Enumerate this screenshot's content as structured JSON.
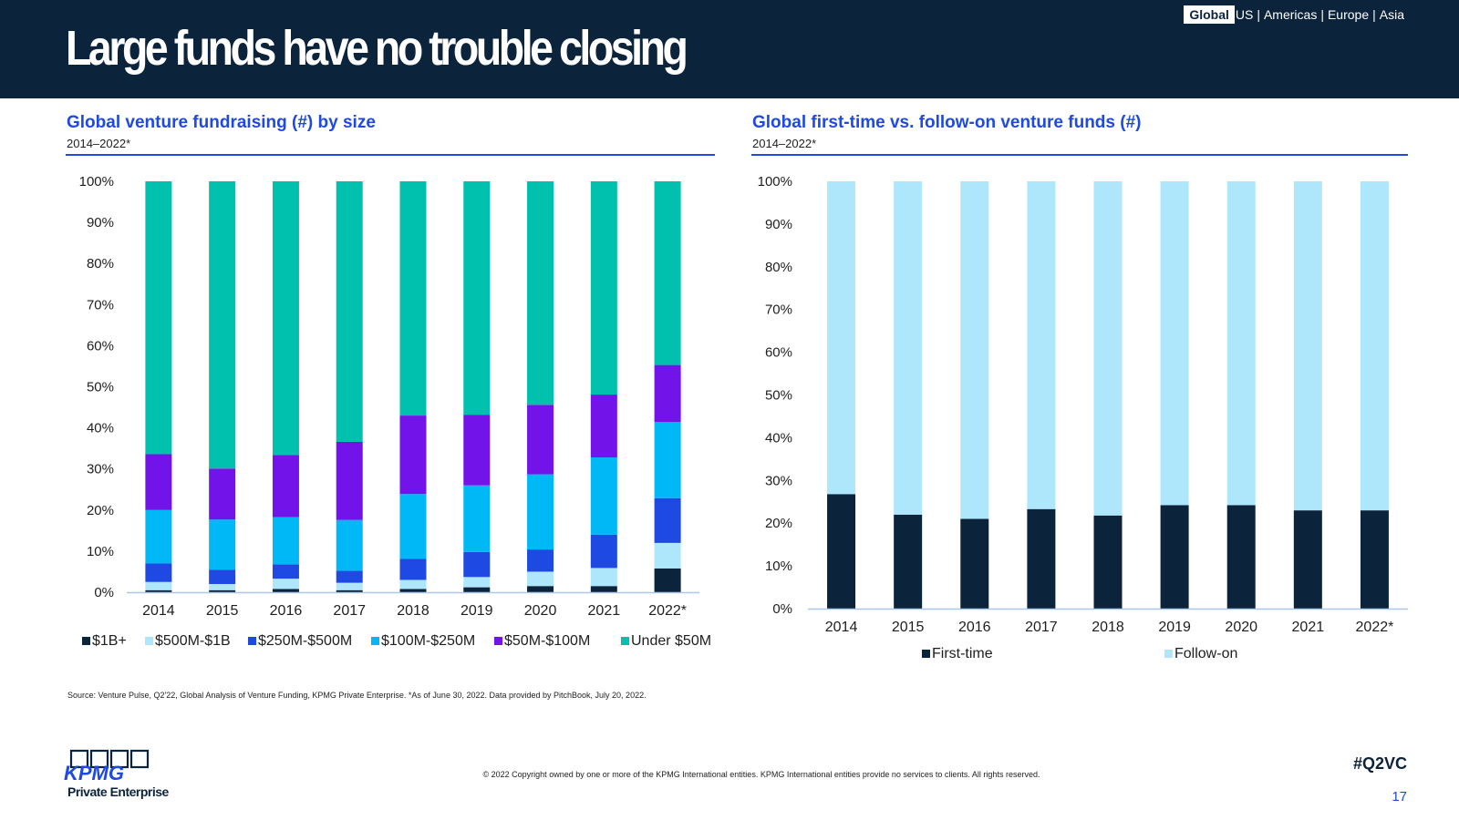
{
  "header": {
    "title": "Large funds have no trouble closing",
    "regions": {
      "active": "Global",
      "others": [
        "US",
        "Americas",
        "Europe",
        "Asia"
      ],
      "separator": "|"
    }
  },
  "left_chart": {
    "title": "Global venture fundraising (#) by size",
    "subtitle": "2014–2022*"
  },
  "right_chart": {
    "title": "Global first-time vs. follow-on venture funds (#)",
    "subtitle": "2014–2022*"
  },
  "chart_data": [
    {
      "type": "bar",
      "stacked": true,
      "title": "Global venture fundraising (#) by size",
      "subtitle": "2014–2022*",
      "categories": [
        "2014",
        "2015",
        "2016",
        "2017",
        "2018",
        "2019",
        "2020",
        "2021",
        "2022*"
      ],
      "ylim": [
        0,
        100
      ],
      "yticks": [
        "0%",
        "10%",
        "20%",
        "30%",
        "40%",
        "50%",
        "60%",
        "70%",
        "80%",
        "90%",
        "100%"
      ],
      "legend_position": "bottom",
      "series": [
        {
          "name": "$1B+",
          "color": "#0c233c",
          "values": [
            0.5,
            0.5,
            0.8,
            0.5,
            0.8,
            1.2,
            1.5,
            1.5,
            5.8
          ]
        },
        {
          "name": "$500M-$1B",
          "color": "#aee6fb",
          "values": [
            2.0,
            1.5,
            2.5,
            1.8,
            2.2,
            2.5,
            3.5,
            4.4,
            6.2
          ]
        },
        {
          "name": "$250M-$500M",
          "color": "#1e49e2",
          "values": [
            4.5,
            3.5,
            3.5,
            2.9,
            5.1,
            6.1,
            5.4,
            8.1,
            10.9
          ]
        },
        {
          "name": "$100M-$250M",
          "color": "#00b8f5",
          "values": [
            13.0,
            12.2,
            11.5,
            12.4,
            15.8,
            16.2,
            18.3,
            18.8,
            18.5
          ]
        },
        {
          "name": "$50M-$100M",
          "color": "#7213ea",
          "values": [
            13.6,
            12.4,
            15.1,
            19.0,
            19.1,
            17.2,
            16.9,
            15.3,
            13.9
          ]
        },
        {
          "name": "Under $50M",
          "color": "#00c0ae",
          "values": [
            66.4,
            69.9,
            66.6,
            63.4,
            57.0,
            56.8,
            54.4,
            51.9,
            44.7
          ]
        }
      ]
    },
    {
      "type": "bar",
      "stacked": true,
      "title": "Global first-time vs. follow-on venture funds (#)",
      "subtitle": "2014–2022*",
      "categories": [
        "2014",
        "2015",
        "2016",
        "2017",
        "2018",
        "2019",
        "2020",
        "2021",
        "2022*"
      ],
      "ylim": [
        0,
        100
      ],
      "yticks": [
        "0%",
        "10%",
        "20%",
        "30%",
        "40%",
        "50%",
        "60%",
        "70%",
        "80%",
        "90%",
        "100%"
      ],
      "legend_position": "bottom",
      "series": [
        {
          "name": "First-time",
          "color": "#0c233c",
          "values": [
            26.8,
            22.0,
            21.0,
            23.3,
            21.8,
            24.2,
            24.2,
            23.0,
            23.0
          ]
        },
        {
          "name": "Follow-on",
          "color": "#aee6fb",
          "values": [
            73.2,
            78.0,
            79.0,
            76.7,
            78.2,
            75.8,
            75.8,
            77.0,
            77.0
          ]
        }
      ]
    }
  ],
  "footer": {
    "source": "Source: Venture Pulse, Q2'22, Global Analysis of Venture Funding, KPMG Private Enterprise. *As of June 30, 2022. Data provided by PitchBook, July 20, 2022.",
    "copyright": "© 2022 Copyright owned by one or more of the KPMG International entities. KPMG International entities provide no services to clients. All rights reserved.",
    "hashtag": "#Q2VC",
    "page_number": "17",
    "logo_text": "KPMG",
    "logo_subtext": "Private Enterprise"
  }
}
